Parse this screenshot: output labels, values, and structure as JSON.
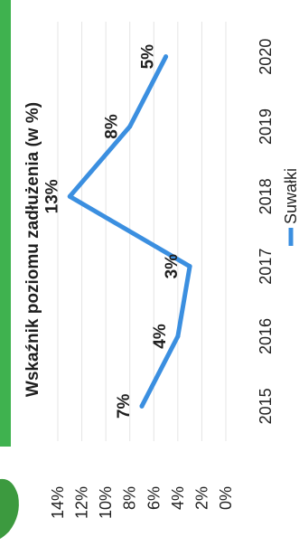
{
  "chart_data": {
    "type": "line",
    "title": "Wskaźnik poziomu zadłużenia (w %)",
    "categories": [
      "2015",
      "2016",
      "2017",
      "2018",
      "2019",
      "2020"
    ],
    "series": [
      {
        "name": "Suwałki",
        "values": [
          7,
          4,
          3,
          13,
          8,
          5
        ],
        "labels": [
          "7%",
          "4%",
          "3%",
          "13%",
          "8%",
          "5%"
        ],
        "color": "#3b8fe0"
      }
    ],
    "y_ticks": [
      "0%",
      "2%",
      "4%",
      "6%",
      "8%",
      "10%",
      "12%",
      "14%"
    ],
    "ylim": [
      0,
      14
    ],
    "legend_position": "bottom",
    "orientation": "rotated 90° counter-clockwise",
    "accent_color": "#3fb24f"
  }
}
